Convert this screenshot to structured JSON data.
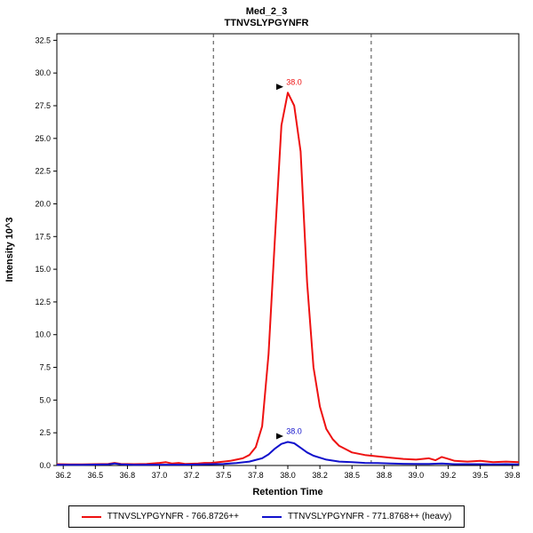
{
  "header": {
    "title": "Med_2_3",
    "subtitle": "TTNVSLYPGYNFR"
  },
  "legend": {
    "items": [
      {
        "label": "TTNVSLYPGYNFR - 766.8726++",
        "color": "#ee1111"
      },
      {
        "label": "TTNVSLYPGYNFR - 771.8768++ (heavy)",
        "color": "#1111cc"
      }
    ]
  },
  "chart_data": {
    "type": "line",
    "title": "Med_2_3",
    "subtitle": "TTNVSLYPGYNFR",
    "xlabel": "Retention Time",
    "ylabel": "Intensity 10^3",
    "xlim": [
      36.2,
      39.8
    ],
    "ylim": [
      0,
      33
    ],
    "grid": false,
    "legend_position": "bottom",
    "xticks": [
      36.25,
      36.5,
      36.75,
      37.0,
      37.25,
      37.5,
      37.75,
      38.0,
      38.25,
      38.5,
      38.75,
      39.0,
      39.25,
      39.5,
      39.75
    ],
    "xtick_labels": [
      "36.2",
      "36.5",
      "36.8",
      "37.0",
      "37.2",
      "37.5",
      "37.8",
      "38.0",
      "38.2",
      "38.5",
      "38.8",
      "39.0",
      "39.2",
      "39.5",
      "39.8"
    ],
    "yticks": [
      0,
      2.5,
      5,
      7.5,
      10,
      12.5,
      15,
      17.5,
      20,
      22.5,
      25,
      27.5,
      30,
      32.5
    ],
    "ytick_labels": [
      "0.0",
      "2.5",
      "5.0",
      "7.5",
      "10.0",
      "12.5",
      "15.0",
      "17.5",
      "20.0",
      "22.5",
      "25.0",
      "27.5",
      "30.0",
      "32.5"
    ],
    "boundaries": [
      37.42,
      38.65
    ],
    "series": [
      {
        "id": "light",
        "name": "TTNVSLYPGYNFR - 766.8726++",
        "color": "#ee1111",
        "peak_label": {
          "text": "38.0",
          "x": 38.0,
          "y": 28.5
        },
        "points": [
          [
            36.2,
            0.1
          ],
          [
            36.3,
            0.08
          ],
          [
            36.4,
            0.08
          ],
          [
            36.5,
            0.1
          ],
          [
            36.6,
            0.12
          ],
          [
            36.65,
            0.2
          ],
          [
            36.7,
            0.12
          ],
          [
            36.8,
            0.1
          ],
          [
            36.9,
            0.12
          ],
          [
            37.0,
            0.2
          ],
          [
            37.05,
            0.25
          ],
          [
            37.1,
            0.15
          ],
          [
            37.15,
            0.2
          ],
          [
            37.2,
            0.12
          ],
          [
            37.3,
            0.15
          ],
          [
            37.35,
            0.2
          ],
          [
            37.4,
            0.2
          ],
          [
            37.5,
            0.3
          ],
          [
            37.55,
            0.35
          ],
          [
            37.6,
            0.45
          ],
          [
            37.65,
            0.55
          ],
          [
            37.7,
            0.8
          ],
          [
            37.75,
            1.4
          ],
          [
            37.8,
            3.0
          ],
          [
            37.85,
            8.5
          ],
          [
            37.9,
            17.5
          ],
          [
            37.95,
            26.0
          ],
          [
            38.0,
            28.5
          ],
          [
            38.05,
            27.5
          ],
          [
            38.1,
            24.0
          ],
          [
            38.15,
            14.0
          ],
          [
            38.2,
            7.5
          ],
          [
            38.25,
            4.5
          ],
          [
            38.3,
            2.8
          ],
          [
            38.35,
            2.0
          ],
          [
            38.4,
            1.5
          ],
          [
            38.5,
            1.0
          ],
          [
            38.6,
            0.8
          ],
          [
            38.7,
            0.7
          ],
          [
            38.8,
            0.6
          ],
          [
            38.9,
            0.5
          ],
          [
            39.0,
            0.45
          ],
          [
            39.05,
            0.5
          ],
          [
            39.1,
            0.55
          ],
          [
            39.15,
            0.4
          ],
          [
            39.2,
            0.65
          ],
          [
            39.25,
            0.5
          ],
          [
            39.3,
            0.35
          ],
          [
            39.4,
            0.3
          ],
          [
            39.5,
            0.35
          ],
          [
            39.6,
            0.25
          ],
          [
            39.7,
            0.3
          ],
          [
            39.8,
            0.25
          ]
        ]
      },
      {
        "id": "heavy",
        "name": "TTNVSLYPGYNFR - 771.8768++ (heavy)",
        "color": "#1111cc",
        "peak_label": {
          "text": "38.0",
          "x": 38.0,
          "y": 1.8
        },
        "points": [
          [
            36.2,
            0.05
          ],
          [
            36.4,
            0.05
          ],
          [
            36.6,
            0.08
          ],
          [
            36.65,
            0.15
          ],
          [
            36.7,
            0.08
          ],
          [
            36.8,
            0.05
          ],
          [
            37.0,
            0.06
          ],
          [
            37.2,
            0.06
          ],
          [
            37.4,
            0.1
          ],
          [
            37.5,
            0.12
          ],
          [
            37.6,
            0.18
          ],
          [
            37.7,
            0.3
          ],
          [
            37.8,
            0.55
          ],
          [
            37.85,
            0.85
          ],
          [
            37.9,
            1.3
          ],
          [
            37.95,
            1.65
          ],
          [
            38.0,
            1.8
          ],
          [
            38.05,
            1.7
          ],
          [
            38.1,
            1.35
          ],
          [
            38.15,
            1.0
          ],
          [
            38.2,
            0.75
          ],
          [
            38.3,
            0.45
          ],
          [
            38.4,
            0.3
          ],
          [
            38.5,
            0.25
          ],
          [
            38.6,
            0.2
          ],
          [
            38.7,
            0.18
          ],
          [
            38.8,
            0.15
          ],
          [
            38.9,
            0.13
          ],
          [
            39.0,
            0.12
          ],
          [
            39.1,
            0.12
          ],
          [
            39.2,
            0.15
          ],
          [
            39.3,
            0.1
          ],
          [
            39.4,
            0.1
          ],
          [
            39.5,
            0.1
          ],
          [
            39.6,
            0.08
          ],
          [
            39.7,
            0.1
          ],
          [
            39.8,
            0.08
          ]
        ]
      }
    ]
  }
}
